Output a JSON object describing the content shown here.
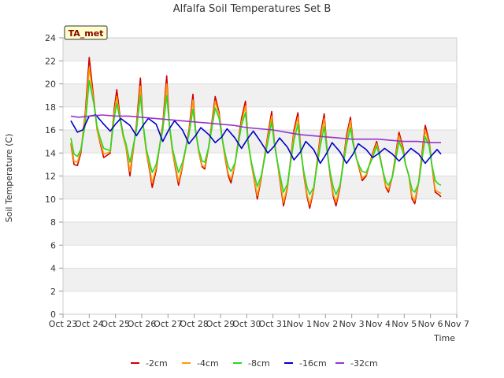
{
  "chart_data": {
    "type": "line",
    "title": "Alfalfa Soil Temperatures Set B",
    "xlabel": "Time",
    "ylabel": "Soil Temperature (C)",
    "badge": "TA_met",
    "ylim": [
      0,
      24
    ],
    "yticks": [
      0,
      2,
      4,
      6,
      8,
      10,
      12,
      14,
      16,
      18,
      20,
      22,
      24
    ],
    "xlim": [
      0,
      15
    ],
    "x_tick_labels": [
      "Oct 23",
      "Oct 24",
      "Oct 25",
      "Oct 26",
      "Oct 27",
      "Oct 28",
      "Oct 29",
      "Oct 30",
      "Oct 31",
      "Nov 1",
      "Nov 2",
      "Nov 3",
      "Nov 4",
      "Nov 5",
      "Nov 6",
      "Nov 7"
    ],
    "x_unit": "days since Oct 23 00:00",
    "grid": true,
    "legend_position": "bottom",
    "series": [
      {
        "name": "-2cm",
        "color": "#d00000",
        "x": [
          0.3,
          0.42,
          0.55,
          0.68,
          0.85,
          1.0,
          1.18,
          1.3,
          1.4,
          1.55,
          1.8,
          1.95,
          2.05,
          2.18,
          2.3,
          2.4,
          2.55,
          2.8,
          2.95,
          3.05,
          3.18,
          3.3,
          3.4,
          3.55,
          3.8,
          3.95,
          4.05,
          4.18,
          4.3,
          4.4,
          4.55,
          4.8,
          4.95,
          5.05,
          5.18,
          5.3,
          5.4,
          5.55,
          5.8,
          5.95,
          6.05,
          6.18,
          6.3,
          6.4,
          6.55,
          6.8,
          6.95,
          7.05,
          7.18,
          7.3,
          7.4,
          7.55,
          7.8,
          7.95,
          8.05,
          8.18,
          8.3,
          8.4,
          8.55,
          8.8,
          8.95,
          9.05,
          9.18,
          9.3,
          9.4,
          9.55,
          9.8,
          9.95,
          10.05,
          10.18,
          10.3,
          10.4,
          10.55,
          10.8,
          10.95,
          11.05,
          11.18,
          11.3,
          11.4,
          11.55,
          11.8,
          11.95,
          12.05,
          12.18,
          12.3,
          12.4,
          12.55,
          12.8,
          12.95,
          13.05,
          13.18,
          13.3,
          13.4,
          13.55,
          13.8,
          13.95,
          14.05,
          14.18,
          14.3,
          14.4
        ],
        "y": [
          14.8,
          13.0,
          12.9,
          14.0,
          17.5,
          22.3,
          18.5,
          16.0,
          15.0,
          13.6,
          14.0,
          17.8,
          19.5,
          17.0,
          15.5,
          14.5,
          12.0,
          16.5,
          20.5,
          16.5,
          14.0,
          12.5,
          11.0,
          12.5,
          16.5,
          20.7,
          16.5,
          14.0,
          12.5,
          11.2,
          12.8,
          16.0,
          19.1,
          16.0,
          14.0,
          12.8,
          12.6,
          14.5,
          18.9,
          17.5,
          15.5,
          13.5,
          12.0,
          11.4,
          13.0,
          17.0,
          18.5,
          15.0,
          13.0,
          11.5,
          10.0,
          11.8,
          15.5,
          17.6,
          15.0,
          13.0,
          11.0,
          9.4,
          11.0,
          16.0,
          17.5,
          14.5,
          12.0,
          10.2,
          9.2,
          10.8,
          15.5,
          17.4,
          14.5,
          12.0,
          10.2,
          9.4,
          11.0,
          15.5,
          17.1,
          15.0,
          13.5,
          12.5,
          11.6,
          12.0,
          14.0,
          15.0,
          14.0,
          12.5,
          11.0,
          10.6,
          12.0,
          15.8,
          14.5,
          13.0,
          12.0,
          10.0,
          9.6,
          11.5,
          16.4,
          15.0,
          13.0,
          10.6,
          10.4,
          10.2
        ]
      },
      {
        "name": "-4cm",
        "color": "#ff9900",
        "x": [
          0.3,
          0.42,
          0.55,
          0.68,
          0.85,
          1.0,
          1.18,
          1.3,
          1.4,
          1.55,
          1.8,
          1.95,
          2.05,
          2.18,
          2.3,
          2.4,
          2.55,
          2.8,
          2.95,
          3.05,
          3.18,
          3.3,
          3.4,
          3.55,
          3.8,
          3.95,
          4.05,
          4.18,
          4.3,
          4.4,
          4.55,
          4.8,
          4.95,
          5.05,
          5.18,
          5.3,
          5.4,
          5.55,
          5.8,
          5.95,
          6.05,
          6.18,
          6.3,
          6.4,
          6.55,
          6.8,
          6.95,
          7.05,
          7.18,
          7.3,
          7.4,
          7.55,
          7.8,
          7.95,
          8.05,
          8.18,
          8.3,
          8.4,
          8.55,
          8.8,
          8.95,
          9.05,
          9.18,
          9.3,
          9.4,
          9.55,
          9.8,
          9.95,
          10.05,
          10.18,
          10.3,
          10.4,
          10.55,
          10.8,
          10.95,
          11.05,
          11.18,
          11.3,
          11.4,
          11.55,
          11.8,
          11.95,
          12.05,
          12.18,
          12.3,
          12.4,
          12.55,
          12.8,
          12.95,
          13.05,
          13.18,
          13.3,
          13.4,
          13.55,
          13.8,
          13.95,
          14.05,
          14.18,
          14.3,
          14.4
        ],
        "y": [
          14.9,
          13.3,
          13.2,
          14.2,
          17.2,
          21.4,
          18.3,
          16.0,
          15.1,
          13.9,
          14.1,
          17.5,
          18.9,
          16.8,
          15.3,
          14.5,
          12.4,
          16.3,
          19.8,
          16.4,
          14.0,
          12.7,
          11.4,
          12.7,
          16.3,
          20.0,
          16.4,
          14.0,
          12.7,
          11.5,
          12.9,
          15.8,
          18.6,
          15.9,
          14.0,
          12.9,
          12.8,
          14.5,
          18.5,
          17.3,
          15.4,
          13.6,
          12.2,
          11.7,
          13.0,
          16.7,
          18.1,
          14.9,
          13.0,
          11.6,
          10.3,
          11.9,
          15.3,
          17.2,
          14.9,
          13.0,
          11.2,
          9.7,
          11.1,
          15.7,
          17.1,
          14.4,
          12.1,
          10.4,
          9.5,
          10.9,
          15.2,
          17.0,
          14.4,
          12.1,
          10.4,
          9.7,
          11.1,
          15.2,
          16.8,
          14.9,
          13.5,
          12.6,
          11.8,
          12.1,
          13.9,
          14.8,
          13.9,
          12.5,
          11.1,
          10.8,
          12.0,
          15.5,
          14.3,
          13.0,
          12.0,
          10.2,
          9.9,
          11.5,
          16.0,
          14.8,
          13.0,
          10.8,
          10.6,
          10.5
        ]
      },
      {
        "name": "-8cm",
        "color": "#22dd22",
        "x": [
          0.3,
          0.42,
          0.55,
          0.68,
          0.85,
          1.0,
          1.18,
          1.3,
          1.4,
          1.55,
          1.8,
          1.95,
          2.05,
          2.18,
          2.3,
          2.4,
          2.55,
          2.8,
          2.95,
          3.05,
          3.18,
          3.3,
          3.4,
          3.55,
          3.8,
          3.95,
          4.05,
          4.18,
          4.3,
          4.4,
          4.55,
          4.8,
          4.95,
          5.05,
          5.18,
          5.3,
          5.4,
          5.55,
          5.8,
          5.95,
          6.05,
          6.18,
          6.3,
          6.4,
          6.55,
          6.8,
          6.95,
          7.05,
          7.18,
          7.3,
          7.4,
          7.55,
          7.8,
          7.95,
          8.05,
          8.18,
          8.3,
          8.4,
          8.55,
          8.8,
          8.95,
          9.05,
          9.18,
          9.3,
          9.4,
          9.55,
          9.8,
          9.95,
          10.05,
          10.18,
          10.3,
          10.4,
          10.55,
          10.8,
          10.95,
          11.05,
          11.18,
          11.3,
          11.4,
          11.55,
          11.8,
          11.95,
          12.05,
          12.18,
          12.3,
          12.4,
          12.55,
          12.8,
          12.95,
          13.05,
          13.18,
          13.3,
          13.4,
          13.55,
          13.8,
          13.95,
          14.05,
          14.18,
          14.3,
          14.4
        ],
        "y": [
          15.3,
          13.9,
          13.7,
          14.3,
          16.5,
          20.3,
          18.2,
          16.3,
          15.4,
          14.4,
          14.2,
          17.0,
          18.3,
          16.8,
          15.5,
          14.8,
          13.2,
          16.0,
          19.0,
          16.5,
          14.3,
          13.2,
          12.3,
          13.0,
          16.0,
          19.0,
          16.5,
          14.3,
          13.2,
          12.3,
          13.2,
          15.6,
          17.8,
          15.9,
          14.2,
          13.3,
          13.2,
          14.5,
          17.9,
          17.0,
          15.4,
          13.9,
          12.8,
          12.4,
          13.1,
          16.4,
          17.5,
          14.9,
          13.2,
          12.0,
          11.1,
          12.0,
          14.9,
          16.7,
          14.8,
          13.1,
          11.7,
          10.6,
          11.3,
          15.1,
          16.5,
          14.2,
          12.3,
          11.0,
          10.4,
          11.0,
          14.6,
          16.3,
          14.3,
          12.3,
          11.0,
          10.4,
          11.2,
          14.7,
          16.2,
          14.8,
          13.5,
          12.8,
          12.4,
          12.3,
          13.6,
          14.6,
          13.8,
          12.5,
          11.5,
          11.2,
          11.9,
          15.0,
          14.1,
          13.0,
          12.0,
          10.8,
          10.6,
          11.4,
          15.4,
          14.6,
          13.0,
          11.6,
          11.3,
          11.2
        ]
      },
      {
        "name": "-16cm",
        "color": "#0000cc",
        "x": [
          0.3,
          0.55,
          0.75,
          1.0,
          1.25,
          1.55,
          1.8,
          2.0,
          2.2,
          2.55,
          2.8,
          3.05,
          3.25,
          3.55,
          3.8,
          4.05,
          4.25,
          4.55,
          4.8,
          5.05,
          5.25,
          5.55,
          5.8,
          6.05,
          6.25,
          6.55,
          6.8,
          7.05,
          7.25,
          7.55,
          7.8,
          8.05,
          8.25,
          8.55,
          8.8,
          9.05,
          9.25,
          9.55,
          9.8,
          10.05,
          10.25,
          10.55,
          10.8,
          11.05,
          11.25,
          11.55,
          11.8,
          12.05,
          12.25,
          12.55,
          12.8,
          13.05,
          13.25,
          13.55,
          13.8,
          14.05,
          14.25,
          14.4
        ],
        "y": [
          16.8,
          15.8,
          16.0,
          17.2,
          17.3,
          16.5,
          15.9,
          16.5,
          17.0,
          16.4,
          15.5,
          16.4,
          17.0,
          16.5,
          15.0,
          16.1,
          16.8,
          16.0,
          14.8,
          15.5,
          16.2,
          15.6,
          14.9,
          15.4,
          16.1,
          15.3,
          14.4,
          15.3,
          15.9,
          14.9,
          14.0,
          14.6,
          15.3,
          14.5,
          13.4,
          14.1,
          15.0,
          14.3,
          13.1,
          14.0,
          14.9,
          14.1,
          13.1,
          13.9,
          14.8,
          14.3,
          13.6,
          14.0,
          14.4,
          13.9,
          13.3,
          13.9,
          14.4,
          13.9,
          13.1,
          13.8,
          14.3,
          13.9
        ]
      },
      {
        "name": "-32cm",
        "color": "#9933cc",
        "x": [
          0.3,
          0.6,
          1.0,
          1.5,
          2.0,
          2.5,
          3.0,
          3.5,
          4.0,
          4.5,
          5.0,
          5.5,
          6.0,
          6.5,
          7.0,
          7.5,
          8.0,
          8.5,
          9.0,
          9.5,
          10.0,
          10.5,
          11.0,
          11.5,
          12.0,
          12.5,
          13.0,
          13.5,
          14.0,
          14.4
        ],
        "y": [
          17.2,
          17.1,
          17.2,
          17.3,
          17.2,
          17.2,
          17.1,
          17.0,
          16.9,
          16.8,
          16.7,
          16.6,
          16.5,
          16.4,
          16.2,
          16.1,
          16.0,
          15.8,
          15.6,
          15.5,
          15.4,
          15.3,
          15.2,
          15.2,
          15.2,
          15.1,
          15.0,
          15.0,
          14.9,
          14.9
        ]
      }
    ]
  }
}
